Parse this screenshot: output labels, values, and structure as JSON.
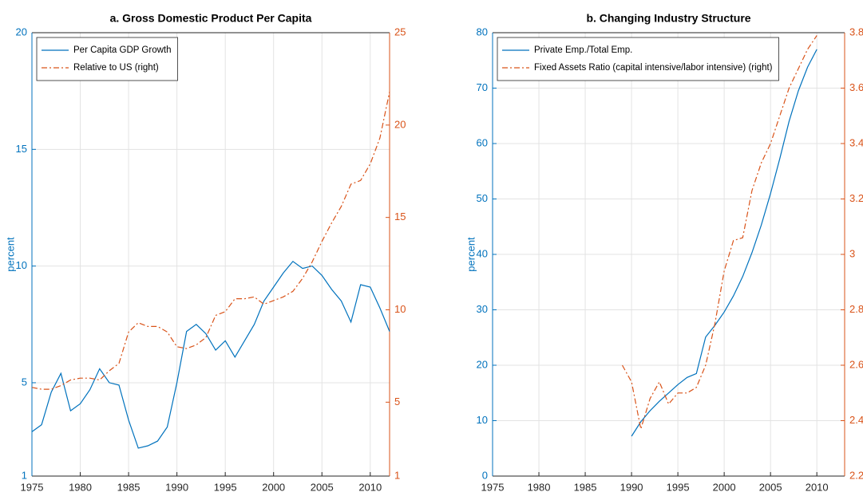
{
  "chart_data": [
    {
      "type": "line",
      "title": "a. Gross Domestic Product Per Capita",
      "ylabel": "percent",
      "grid": true,
      "legend": "upper left",
      "x": [
        1975,
        1976,
        1977,
        1978,
        1979,
        1980,
        1981,
        1982,
        1983,
        1984,
        1985,
        1986,
        1987,
        1988,
        1989,
        1990,
        1991,
        1992,
        1993,
        1994,
        1995,
        1996,
        1997,
        1998,
        1999,
        2000,
        2001,
        2002,
        2003,
        2004,
        2005,
        2006,
        2007,
        2008,
        2009,
        2010,
        2011,
        2012
      ],
      "xlim": [
        1975,
        2012
      ],
      "xticks": [
        1975,
        1980,
        1985,
        1990,
        1995,
        2000,
        2005,
        2010
      ],
      "ylim": [
        1,
        20
      ],
      "yticks": [
        1,
        5,
        10,
        15,
        20
      ],
      "y2lim": [
        1,
        25
      ],
      "y2ticks": [
        1,
        5,
        10,
        15,
        20,
        25
      ],
      "series": [
        {
          "name": "Per Capita GDP Growth",
          "color": "#0072bd",
          "linestyle": "solid",
          "axis": "y",
          "values": [
            2.9,
            3.2,
            4.6,
            5.4,
            3.8,
            4.1,
            4.7,
            5.6,
            5.0,
            4.9,
            3.4,
            2.2,
            2.3,
            2.5,
            3.1,
            5.0,
            7.2,
            7.5,
            7.1,
            6.4,
            6.8,
            6.1,
            6.8,
            7.5,
            8.5,
            9.1,
            9.7,
            10.2,
            9.9,
            10.0,
            9.6,
            9.0,
            8.5,
            7.6,
            9.2,
            9.1,
            8.2,
            7.2
          ]
        },
        {
          "name": "Relative to US (right)",
          "color": "#d95319",
          "linestyle": "dashdot",
          "axis": "y2",
          "values": [
            5.8,
            5.7,
            5.7,
            5.9,
            6.2,
            6.3,
            6.3,
            6.2,
            6.7,
            7.1,
            8.8,
            9.3,
            9.1,
            9.1,
            8.8,
            8.0,
            7.9,
            8.1,
            8.5,
            9.7,
            9.9,
            10.6,
            10.6,
            10.7,
            10.3,
            10.5,
            10.7,
            11.0,
            11.7,
            12.6,
            13.7,
            14.7,
            15.6,
            16.8,
            17.0,
            17.9,
            19.3,
            21.8
          ]
        }
      ]
    },
    {
      "type": "line",
      "title": "b. Changing Industry Structure",
      "ylabel": "percent",
      "grid": true,
      "legend": "upper left",
      "x": [
        1989,
        1990,
        1991,
        1992,
        1993,
        1994,
        1995,
        1996,
        1997,
        1998,
        1999,
        2000,
        2001,
        2002,
        2003,
        2004,
        2005,
        2006,
        2007,
        2008,
        2009,
        2010
      ],
      "xlim": [
        1975,
        2013
      ],
      "xticks": [
        1975,
        1980,
        1985,
        1990,
        1995,
        2000,
        2005,
        2010
      ],
      "ylim": [
        0,
        80
      ],
      "yticks": [
        0,
        10,
        20,
        30,
        40,
        50,
        60,
        70,
        80
      ],
      "y2lim": [
        2.2,
        3.8
      ],
      "y2ticks": [
        2.2,
        2.4,
        2.6,
        2.8,
        3,
        3.2,
        3.4,
        3.6,
        3.8
      ],
      "series": [
        {
          "name": "Private Emp./Total Emp.",
          "color": "#0072bd",
          "linestyle": "solid",
          "axis": "y",
          "values": [
            null,
            7.2,
            9.8,
            11.8,
            13.5,
            15.0,
            16.5,
            17.8,
            18.5,
            25.1,
            27.2,
            29.6,
            32.5,
            36.0,
            40.3,
            45.3,
            51.0,
            57.3,
            64.0,
            69.5,
            73.8,
            77.0
          ]
        },
        {
          "name": "Fixed Assets Ratio (capital intensive/labor intensive) (right)",
          "color": "#d95319",
          "linestyle": "dashdot",
          "axis": "y2",
          "values": [
            2.6,
            2.54,
            2.37,
            2.48,
            2.54,
            2.46,
            2.5,
            2.5,
            2.52,
            2.6,
            2.75,
            2.94,
            3.05,
            3.06,
            3.23,
            3.33,
            3.4,
            3.5,
            3.6,
            3.67,
            3.74,
            3.79
          ]
        }
      ]
    }
  ]
}
